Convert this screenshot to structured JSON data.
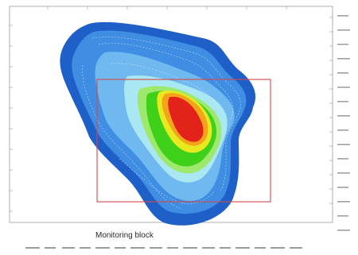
{
  "map": {
    "label": "Monitoring block",
    "colors": {
      "outer_blue": "#1f5fc8",
      "mid_blue": "#3f8ee3",
      "light_blue": "#6fb8f0",
      "cyan": "#a9e7f3",
      "light_green": "#9ee86b",
      "green": "#3fd11a",
      "yellow": "#e8ea1f",
      "orange": "#f2a51a",
      "red": "#e3221a",
      "block_outline": "#d24a4a",
      "frame": "#9a9a9a"
    },
    "top_ticks": [
      "·",
      "·",
      "·",
      "·",
      "·",
      "·",
      "·",
      "·"
    ],
    "right_ticks": [
      "·",
      "·",
      "·",
      "·",
      "·",
      "·",
      "·",
      "·",
      "·",
      "·",
      "·",
      "·",
      "·",
      "·",
      "·",
      "·",
      "·",
      "·",
      "·",
      "·",
      "·",
      "·",
      "·",
      "·"
    ],
    "bottom_ticks": [
      "·",
      "·",
      "·",
      "·",
      "·",
      "·",
      "·",
      "·",
      "·",
      "·",
      "·",
      "·",
      "·",
      "·",
      "·",
      "·"
    ]
  }
}
